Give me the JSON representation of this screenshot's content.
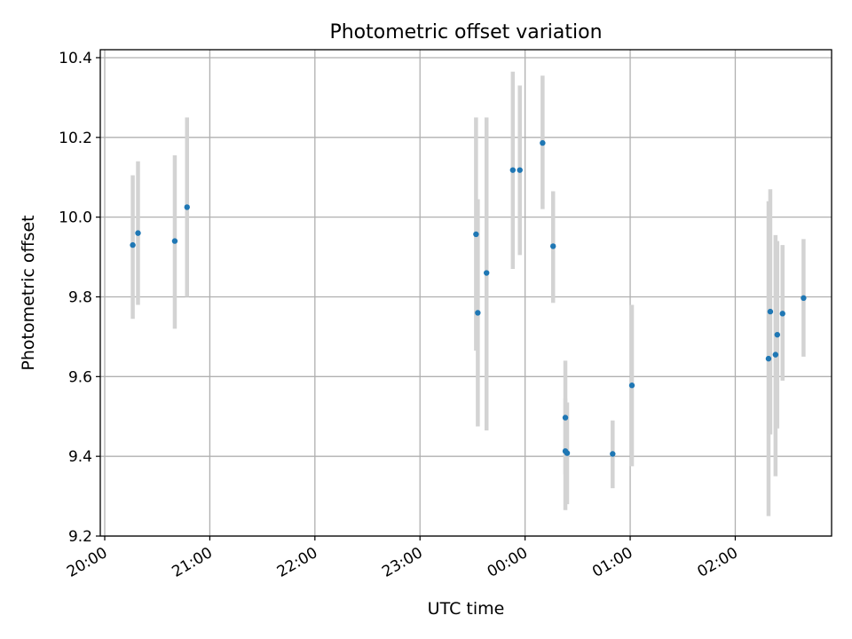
{
  "chart_data": {
    "type": "scatter",
    "title": "Photometric offset variation",
    "xlabel": "UTC time",
    "ylabel": "Photometric offset",
    "x_unit": "UTC time (HH:MM), continuing past midnight",
    "xlim": [
      "20:00",
      "02:55"
    ],
    "ylim": [
      9.2,
      10.42
    ],
    "x_ticks": [
      "20:00",
      "21:00",
      "22:00",
      "23:00",
      "00:00",
      "01:00",
      "02:00"
    ],
    "y_ticks": [
      "9.2",
      "9.4",
      "9.6",
      "9.8",
      "10.0",
      "10.2",
      "10.4"
    ],
    "grid": true,
    "colors": {
      "point": "#1f77b4",
      "errorbar": "#d3d3d3"
    },
    "points": [
      {
        "x": "20:16",
        "y": 9.93,
        "ylow": 9.745,
        "yhigh": 10.105
      },
      {
        "x": "20:19",
        "y": 9.96,
        "ylow": 9.78,
        "yhigh": 10.14
      },
      {
        "x": "20:40",
        "y": 9.94,
        "ylow": 9.72,
        "yhigh": 10.155
      },
      {
        "x": "20:47",
        "y": 10.025,
        "ylow": 9.8,
        "yhigh": 10.25
      },
      {
        "x": "23:32",
        "y": 9.957,
        "ylow": 9.665,
        "yhigh": 10.25
      },
      {
        "x": "23:33",
        "y": 9.76,
        "ylow": 9.475,
        "yhigh": 10.045
      },
      {
        "x": "23:38",
        "y": 9.86,
        "ylow": 9.465,
        "yhigh": 10.25
      },
      {
        "x": "23:53",
        "y": 10.118,
        "ylow": 9.87,
        "yhigh": 10.365
      },
      {
        "x": "23:57",
        "y": 10.118,
        "ylow": 9.905,
        "yhigh": 10.33
      },
      {
        "x": "00:10",
        "y": 10.186,
        "ylow": 10.02,
        "yhigh": 10.355
      },
      {
        "x": "00:16",
        "y": 9.927,
        "ylow": 9.785,
        "yhigh": 10.065
      },
      {
        "x": "00:23",
        "y": 9.497,
        "ylow": 9.355,
        "yhigh": 9.64
      },
      {
        "x": "00:23",
        "y": 9.413,
        "ylow": 9.265,
        "yhigh": 9.545
      },
      {
        "x": "00:24",
        "y": 9.408,
        "ylow": 9.28,
        "yhigh": 9.535
      },
      {
        "x": "00:50",
        "y": 9.406,
        "ylow": 9.32,
        "yhigh": 9.49
      },
      {
        "x": "01:01",
        "y": 9.578,
        "ylow": 9.375,
        "yhigh": 9.78
      },
      {
        "x": "02:19",
        "y": 9.645,
        "ylow": 9.25,
        "yhigh": 10.04
      },
      {
        "x": "02:20",
        "y": 9.763,
        "ylow": 9.455,
        "yhigh": 10.07
      },
      {
        "x": "02:23",
        "y": 9.655,
        "ylow": 9.35,
        "yhigh": 9.955
      },
      {
        "x": "02:24",
        "y": 9.705,
        "ylow": 9.47,
        "yhigh": 9.94
      },
      {
        "x": "02:27",
        "y": 9.758,
        "ylow": 9.59,
        "yhigh": 9.93
      },
      {
        "x": "02:39",
        "y": 9.797,
        "ylow": 9.65,
        "yhigh": 9.945
      }
    ]
  }
}
